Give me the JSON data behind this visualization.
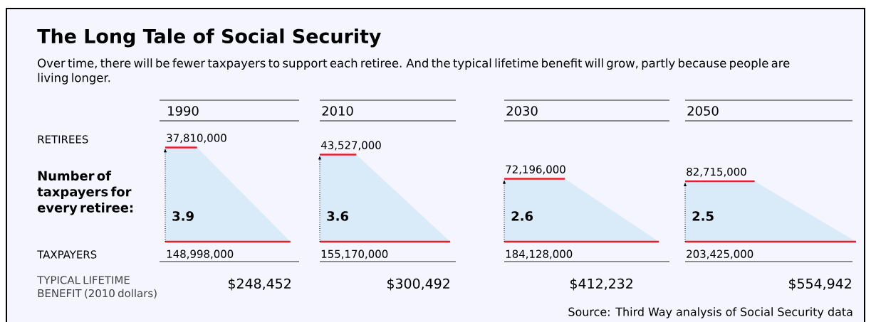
{
  "chart_data": {
    "type": "other",
    "title": "The Long Tale of Social Security",
    "subtitle": "Over time, there will be fewer taxpayers to support each retiree. And the typical lifetime benefit will grow, partly because people are living longer.",
    "categories": [
      "1990",
      "2010",
      "2030",
      "2050"
    ],
    "series": [
      {
        "color": "#ee1c25",
        "values": [
          37810000,
          43527000,
          72196000,
          82715000
        ],
        "value_labels": [
          "37,810,000",
          "43,527,000",
          "72,196,000",
          "82,715,000"
        ]
      },
      {
        "color": "#ee1c25",
        "values": [
          148998000,
          155170000,
          184128000,
          203425000
        ],
        "value_labels": [
          "148,998,000",
          "155,170,000",
          "184,128,000",
          "203,425,000"
        ]
      },
      {
        "name": "Number of taxpayers for every retiree:",
        "color": "#d9eaf8",
        "values": [
          3.9,
          3.6,
          2.6,
          2.5
        ],
        "value_labels": [
          "3.9",
          "3.6",
          "2.6",
          "2.5"
        ]
      },
      {
        "name": "TYPICAL LIFETIME BENEFIT (2010 dollars)",
        "values": [
          248452,
          300492,
          412232,
          554942
        ],
        "value_labels": [
          "$248,452",
          "$300,492",
          "$412,232",
          "$554,942"
        ]
      }
    ],
    "annotations": [
      "RETIREES",
      "TAXPAYERS",
      "Source: Third Way analysis of Social Security data"
    ]
  }
}
